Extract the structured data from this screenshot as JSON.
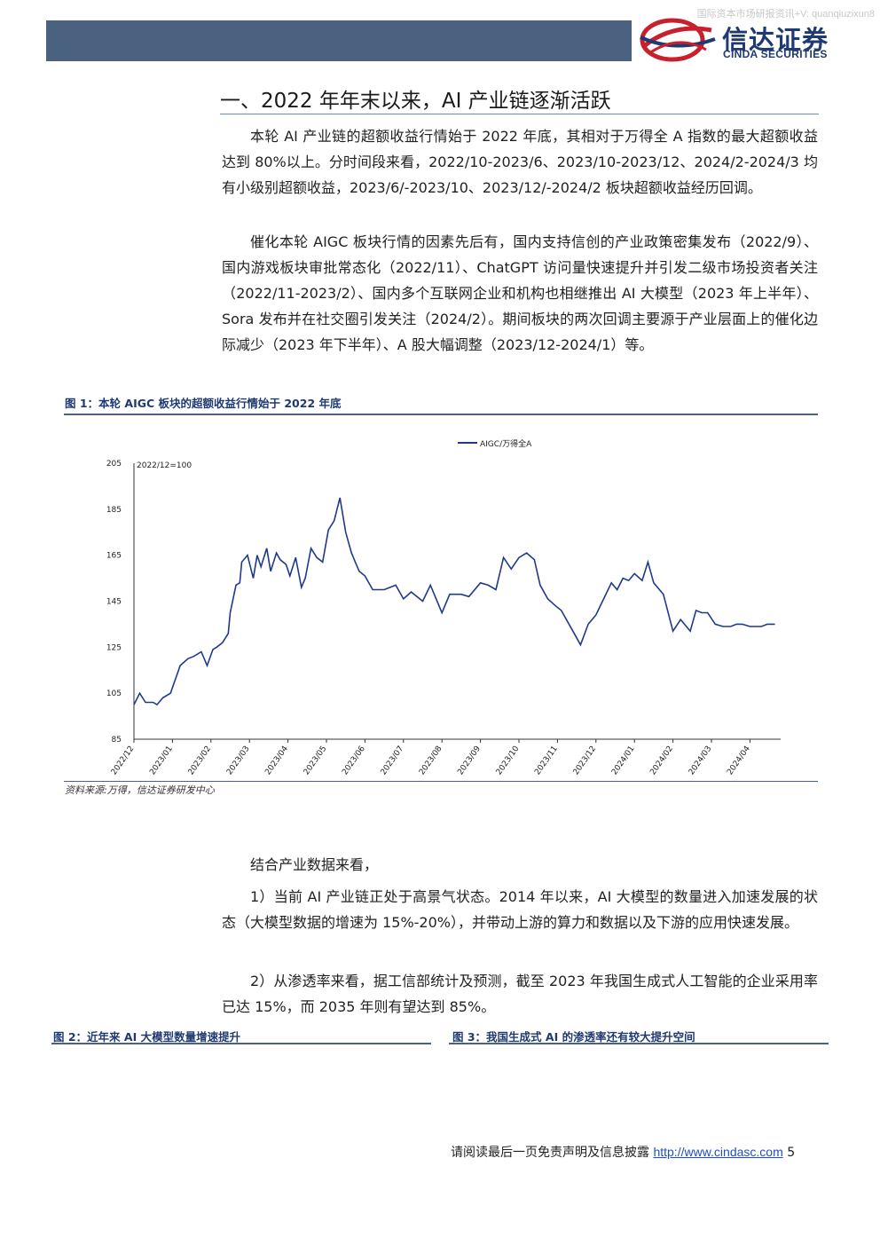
{
  "watermark": "国际资本市场研报资讯+V: quanqiuzixun8",
  "brand": {
    "name_cn": "信达证券",
    "name_en": "CINDA SECURITIES",
    "accent": "#1f3a72",
    "band_color": "#4a6280"
  },
  "section": {
    "title": "一、2022 年年末以来，AI 产业链逐渐活跃"
  },
  "paragraphs": {
    "p1": "本轮 AI 产业链的超额收益行情始于 2022 年底，其相对于万得全 A 指数的最大超额收益达到 80%以上。分时间段来看，2022/10-2023/6、2023/10-2023/12、2024/2-2024/3 均有小级别超额收益，2023/6/-2023/10、2023/12/-2024/2 板块超额收益经历回调。",
    "p2": "催化本轮 AIGC 板块行情的因素先后有，国内支持信创的产业政策密集发布（2022/9）、国内游戏板块审批常态化（2022/11）、ChatGPT 访问量快速提升并引发二级市场投资者关注（2022/11-2023/2）、国内多个互联网企业和机构也相继推出 AI 大模型（2023 年上半年）、Sora 发布并在社交圈引发关注（2024/2）。期间板块的两次回调主要源于产业层面上的催化边际减少（2023 年下半年）、A 股大幅调整（2023/12-2024/1）等。",
    "p3": "结合产业数据来看，",
    "p4": "1）当前 AI 产业链正处于高景气状态。2014 年以来，AI 大模型的数量进入加速发展的状态（大模型数据的增速为 15%-20%），并带动上游的算力和数据以及下游的应用快速发展。",
    "p5": "2）从渗透率来看，据工信部统计及预测，截至 2023 年我国生成式人工智能的企业采用率已达 15%，而 2035 年则有望达到 85%。"
  },
  "figure1": {
    "title": "图 1：本轮 AIGC 板块的超额收益行情始于 2022 年底",
    "source": "资料来源:万得，信达证券研发中心"
  },
  "figure2": {
    "title": "图 2：近年来 AI 大模型数量增速提升"
  },
  "figure3": {
    "title": "图 3：我国生成式 AI 的渗透率还有较大提升空间"
  },
  "footer": {
    "text": "请阅读最后一页免责声明及信息披露",
    "url": "http://www.cindasc.com",
    "page": "5"
  },
  "chart_data": {
    "type": "line",
    "annotation": "2022/12=100",
    "legend_position": "top-center",
    "grid": false,
    "ylim": [
      85,
      205
    ],
    "y_ticks": [
      "205",
      "185",
      "165",
      "145",
      "125",
      "105",
      "85"
    ],
    "x_ticks": [
      "2022/12",
      "2023/01",
      "2023/02",
      "2023/03",
      "2023/04",
      "2023/05",
      "2023/06",
      "2023/07",
      "2023/08",
      "2023/09",
      "2023/10",
      "2023/11",
      "2023/12",
      "2024/01",
      "2024/02",
      "2024/03",
      "2024/04"
    ],
    "series": [
      {
        "name": "AIGC/万得全A",
        "color": "#1f3a8a",
        "x": [
          0,
          0.15,
          0.3,
          0.5,
          0.6,
          0.75,
          0.95,
          1.2,
          1.4,
          1.55,
          1.75,
          1.9,
          2.05,
          2.15,
          2.3,
          2.45,
          2.5,
          2.65,
          2.75,
          2.8,
          2.95,
          3.1,
          3.2,
          3.3,
          3.45,
          3.55,
          3.7,
          3.8,
          3.95,
          4.05,
          4.2,
          4.35,
          4.45,
          4.6,
          4.75,
          4.9,
          5.05,
          5.2,
          5.35,
          5.5,
          5.65,
          5.75,
          5.85,
          6.0,
          6.2,
          6.5,
          6.8,
          7.0,
          7.2,
          7.5,
          7.7,
          8.0,
          8.2,
          8.5,
          8.7,
          9.0,
          9.2,
          9.4,
          9.6,
          9.8,
          10.0,
          10.2,
          10.4,
          10.55,
          10.75,
          10.95,
          11.1,
          11.4,
          11.6,
          11.8,
          12.0,
          12.2,
          12.4,
          12.55,
          12.7,
          12.85,
          13.0,
          13.2,
          13.35,
          13.5,
          13.75,
          14.0,
          14.2,
          14.45,
          14.6,
          14.75,
          14.9,
          15.1,
          15.3,
          15.5,
          15.65,
          15.8,
          16.0,
          16.15,
          16.3,
          16.45,
          16.65
        ],
        "values": [
          100,
          105,
          101,
          101,
          100,
          103,
          105,
          117,
          120,
          121,
          123,
          117,
          124,
          125,
          127,
          131,
          140,
          152,
          153,
          162,
          165,
          155,
          165,
          160,
          168,
          158,
          166,
          163,
          161,
          156,
          164,
          151,
          155,
          168,
          164,
          162,
          176,
          180,
          190,
          175,
          166,
          162,
          158,
          156,
          150,
          150,
          152,
          146,
          149,
          145,
          152,
          140,
          148,
          148,
          147,
          153,
          152,
          150,
          164,
          159,
          164,
          166,
          163,
          152,
          146,
          143,
          141,
          132,
          126,
          135,
          139,
          146,
          153,
          150,
          155,
          154,
          157,
          154,
          162,
          153,
          148,
          132,
          137,
          132,
          141,
          140,
          140,
          135,
          134,
          134,
          135,
          135,
          134,
          134,
          134,
          135,
          135
        ]
      }
    ]
  }
}
